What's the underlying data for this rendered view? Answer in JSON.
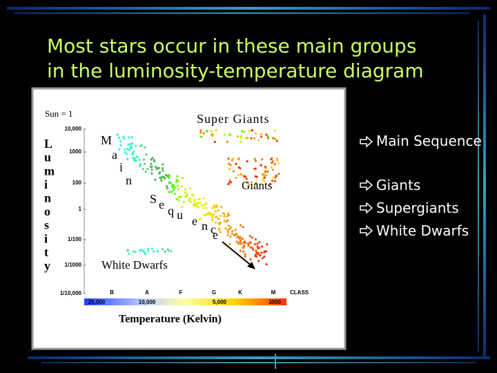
{
  "title": {
    "line1": "Most stars occur in these main groups",
    "line2": "in the luminosity-temperature diagram"
  },
  "diagram": {
    "sun_label": "Sun = 1",
    "supergiants_label": "Super Giants",
    "y_axis_label": "Luminosity",
    "y_ticks": [
      "10,000",
      "1000",
      "100",
      "1",
      "1/100",
      "1/1000",
      "1/10,000"
    ],
    "main_sequence_label": "Main Sequence",
    "giants_label": "Giants",
    "white_dwarfs_label": "White Dwarfs",
    "classes": [
      "B",
      "A",
      "F",
      "G",
      "K",
      "M"
    ],
    "class_axis_label": "CLASS",
    "temperatures": [
      "25,000",
      "10,000",
      "5,000",
      "3000"
    ],
    "x_axis_label": "Temperature (Kelvin)"
  },
  "bullets": [
    "Main Sequence",
    "Giants",
    "Supergiants",
    "White Dwarfs"
  ]
}
